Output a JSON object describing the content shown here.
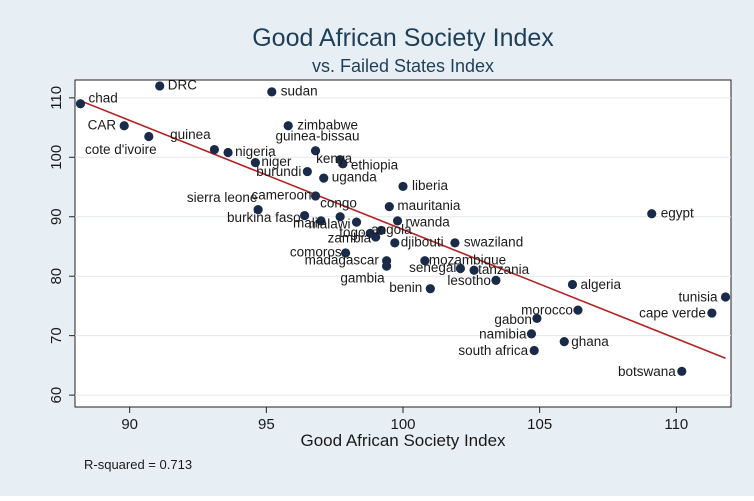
{
  "chart_data": {
    "type": "scatter",
    "title": "Good African Society Index",
    "subtitle": "vs. Failed States Index",
    "xlabel": "Good African Society Index",
    "ylabel": "",
    "xlim": [
      88,
      112
    ],
    "ylim": [
      58,
      113
    ],
    "xticks": [
      90,
      95,
      100,
      105,
      110
    ],
    "yticks": [
      60,
      70,
      80,
      90,
      100,
      110
    ],
    "grid": true,
    "note": "R-squared = 0.713",
    "colors": {
      "point": "#1a2b4a",
      "fit": "#b22222",
      "plot_bg": "#ffffff",
      "outer_bg": "#e8eff4",
      "title": "#1e3f5a"
    },
    "fit_line": {
      "x": [
        88.2,
        111.8
      ],
      "y": [
        109.5,
        66.2
      ]
    },
    "points": [
      {
        "label": "chad",
        "x": 88.2,
        "y": 109.0
      },
      {
        "label": "DRC",
        "x": 91.1,
        "y": 112.0
      },
      {
        "label": "sudan",
        "x": 95.2,
        "y": 111.0
      },
      {
        "label": "CAR",
        "x": 89.8,
        "y": 105.3
      },
      {
        "label": "cote d'ivoire",
        "x": 90.7,
        "y": 103.5
      },
      {
        "label": "guinea",
        "x": 93.1,
        "y": 101.3
      },
      {
        "label": "nigeria",
        "x": 93.6,
        "y": 100.8
      },
      {
        "label": "zimbabwe",
        "x": 95.8,
        "y": 105.3
      },
      {
        "label": "guinea-bissau",
        "x": 96.8,
        "y": 101.1
      },
      {
        "label": "kenya",
        "x": 97.7,
        "y": 99.6
      },
      {
        "label": "ethiopia",
        "x": 97.8,
        "y": 98.9
      },
      {
        "label": "niger",
        "x": 94.6,
        "y": 99.1
      },
      {
        "label": "burundi",
        "x": 96.5,
        "y": 97.6
      },
      {
        "label": "uganda",
        "x": 97.1,
        "y": 96.5
      },
      {
        "label": "liberia",
        "x": 100.0,
        "y": 95.1
      },
      {
        "label": "cameroon",
        "x": 96.8,
        "y": 93.5
      },
      {
        "label": "sierra leone",
        "x": 94.7,
        "y": 91.2
      },
      {
        "label": "burkina faso",
        "x": 96.4,
        "y": 90.2
      },
      {
        "label": "congo",
        "x": 97.7,
        "y": 90.0
      },
      {
        "label": "mauritania",
        "x": 99.5,
        "y": 91.7
      },
      {
        "label": "malawi",
        "x": 98.3,
        "y": 89.1
      },
      {
        "label": "mali",
        "x": 97.0,
        "y": 89.3
      },
      {
        "label": "rwanda",
        "x": 99.8,
        "y": 89.3
      },
      {
        "label": "togo",
        "x": 98.8,
        "y": 87.2
      },
      {
        "label": "angola",
        "x": 99.2,
        "y": 87.7
      },
      {
        "label": "zambia",
        "x": 99.0,
        "y": 86.6
      },
      {
        "label": "djibouti",
        "x": 99.7,
        "y": 85.6
      },
      {
        "label": "swaziland",
        "x": 101.9,
        "y": 85.6
      },
      {
        "label": "comoros",
        "x": 97.9,
        "y": 83.9
      },
      {
        "label": "madagascar",
        "x": 99.4,
        "y": 82.6
      },
      {
        "label": "mozambique",
        "x": 100.8,
        "y": 82.6
      },
      {
        "label": "senegal",
        "x": 102.1,
        "y": 81.3
      },
      {
        "label": "tanzania",
        "x": 102.6,
        "y": 81.0
      },
      {
        "label": "gambia",
        "x": 99.4,
        "y": 81.7
      },
      {
        "label": "lesotho",
        "x": 103.4,
        "y": 79.3
      },
      {
        "label": "benin",
        "x": 101.0,
        "y": 77.9
      },
      {
        "label": "algeria",
        "x": 106.2,
        "y": 78.6
      },
      {
        "label": "egypt",
        "x": 109.1,
        "y": 90.5
      },
      {
        "label": "tunisia",
        "x": 111.8,
        "y": 76.5
      },
      {
        "label": "cape verde",
        "x": 111.3,
        "y": 73.8
      },
      {
        "label": "morocco",
        "x": 106.4,
        "y": 74.3
      },
      {
        "label": "gabon",
        "x": 104.9,
        "y": 72.9
      },
      {
        "label": "namibia",
        "x": 104.7,
        "y": 70.3
      },
      {
        "label": "ghana",
        "x": 105.9,
        "y": 69.0
      },
      {
        "label": "south africa",
        "x": 104.8,
        "y": 67.5
      },
      {
        "label": "botswana",
        "x": 110.2,
        "y": 64.0
      }
    ]
  }
}
